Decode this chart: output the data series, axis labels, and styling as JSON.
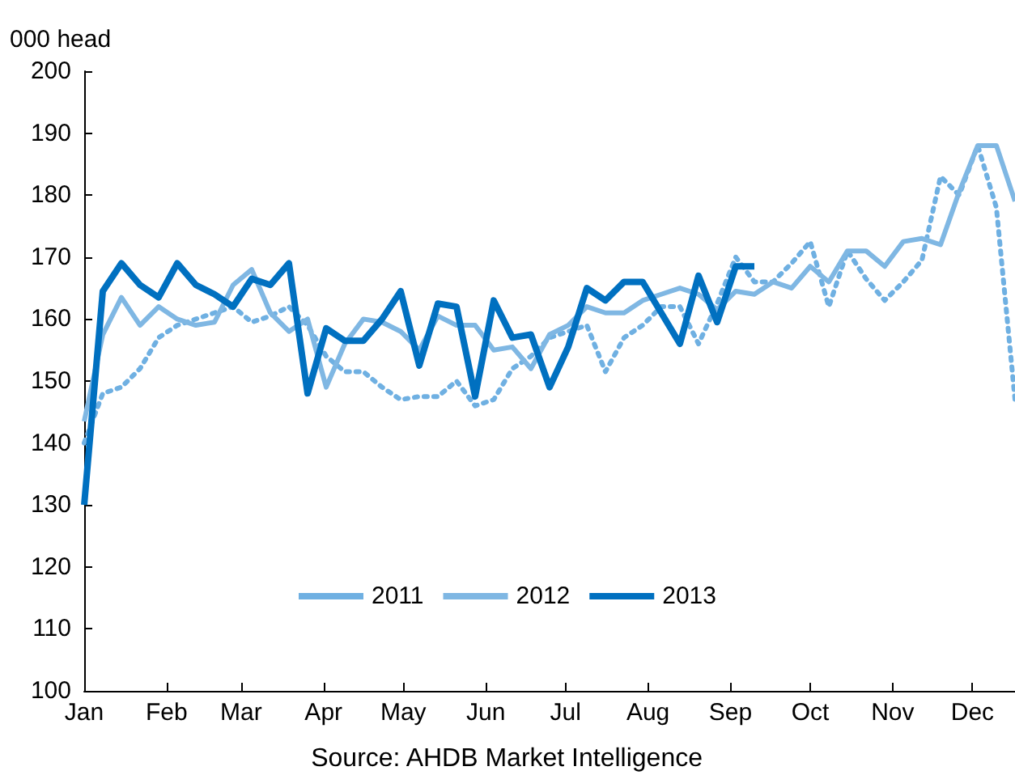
{
  "chart_data": {
    "type": "line",
    "ylabel": "000 head",
    "x": [
      "--01-01",
      "--01-08",
      "--01-15",
      "--01-22",
      "--01-29",
      "--02-05",
      "--02-12",
      "--02-19",
      "--02-26",
      "--03-05",
      "--03-12",
      "--03-19",
      "--03-26",
      "--04-02",
      "--04-09",
      "--04-16",
      "--04-23",
      "--04-30",
      "--05-07",
      "--05-14",
      "--05-21",
      "--05-28",
      "--06-04",
      "--06-11",
      "--06-18",
      "--06-25",
      "--07-02",
      "--07-09",
      "--07-16",
      "--07-23",
      "--07-30",
      "--08-06",
      "--08-13",
      "--08-20",
      "--08-27",
      "--09-03",
      "--09-10",
      "--09-17",
      "--09-24",
      "--10-01",
      "--10-08",
      "--10-15",
      "--10-22",
      "--10-29",
      "--11-05",
      "--11-12",
      "--11-19",
      "--11-26",
      "--12-03",
      "--12-10",
      "--12-17"
    ],
    "series": [
      {
        "name": "2011",
        "color": "#6fb0e2",
        "line_style": "dotted",
        "values": [
          140,
          148,
          149,
          152,
          157,
          159,
          160,
          161,
          162,
          159.5,
          160.5,
          162,
          159,
          154,
          151.5,
          151.5,
          149,
          147,
          147.5,
          147.5,
          150,
          146,
          147,
          152,
          154,
          157,
          158,
          159,
          151.5,
          157,
          159,
          162,
          162,
          156,
          162.5,
          170,
          166,
          166,
          169,
          172.5,
          162,
          171,
          166.5,
          163,
          166,
          169.5,
          183,
          180,
          188,
          178,
          147
        ]
      },
      {
        "name": "2012",
        "color": "#7fb7e3",
        "line_style": "solid",
        "values": [
          143.5,
          157.5,
          163.5,
          159,
          162,
          160,
          159,
          159.5,
          165.5,
          168,
          161,
          158,
          160,
          149,
          156,
          160,
          159.5,
          158,
          155,
          160.5,
          159,
          159,
          155,
          155.5,
          152,
          157.5,
          159,
          162,
          161,
          161,
          163,
          164,
          165,
          164,
          161.5,
          164.5,
          164,
          166,
          165,
          168.5,
          166,
          171,
          171,
          168.5,
          172.5,
          173,
          172,
          180.5,
          188,
          188,
          179
        ]
      },
      {
        "name": "2013",
        "color": "#0070c0",
        "line_style": "solid",
        "x": [
          "--01-01",
          "--01-08",
          "--01-15",
          "--01-22",
          "--01-29",
          "--02-05",
          "--02-12",
          "--02-19",
          "--02-26",
          "--03-05",
          "--03-12",
          "--03-19",
          "--03-26",
          "--04-02",
          "--04-09",
          "--04-16",
          "--04-23",
          "--04-30",
          "--05-07",
          "--05-14",
          "--05-21",
          "--05-28",
          "--06-04",
          "--06-11",
          "--06-18",
          "--06-25",
          "--07-02",
          "--07-09",
          "--07-16",
          "--07-23",
          "--07-30",
          "--08-06",
          "--08-13",
          "--08-20",
          "--08-27",
          "--09-03",
          "--09-10"
        ],
        "values": [
          130,
          164.5,
          169,
          165.5,
          163.5,
          169,
          165.5,
          164,
          162,
          166.5,
          165.5,
          169,
          148,
          158.5,
          156.5,
          156.5,
          160,
          164.5,
          152.5,
          162.5,
          162,
          147.5,
          163,
          157,
          157.5,
          149,
          155.5,
          165,
          163,
          166,
          166,
          161,
          156,
          167,
          159.5,
          168.5,
          168.5
        ]
      }
    ],
    "xlim": [
      "--01-01",
      "--12-17"
    ],
    "xticks": [
      {
        "value": "--01-01",
        "label": "Jan"
      },
      {
        "value": "--02-01",
        "label": "Feb"
      },
      {
        "value": "--03-01",
        "label": "Mar"
      },
      {
        "value": "--04-01",
        "label": "Apr"
      },
      {
        "value": "--05-01",
        "label": "May"
      },
      {
        "value": "--06-01",
        "label": "Jun"
      },
      {
        "value": "--07-01",
        "label": "Jul"
      },
      {
        "value": "--08-01",
        "label": "Aug"
      },
      {
        "value": "--09-01",
        "label": "Sep"
      },
      {
        "value": "--10-01",
        "label": "Oct"
      },
      {
        "value": "--11-01",
        "label": "Nov"
      },
      {
        "value": "--12-01",
        "label": "Dec"
      }
    ],
    "ylim": [
      100,
      200
    ],
    "yticks": [
      100,
      110,
      120,
      130,
      140,
      150,
      160,
      170,
      180,
      190,
      200
    ],
    "grid": false,
    "legend": "bottom",
    "marker": "none",
    "annotations": [
      "Source: AHDB Market Intelligence"
    ]
  }
}
